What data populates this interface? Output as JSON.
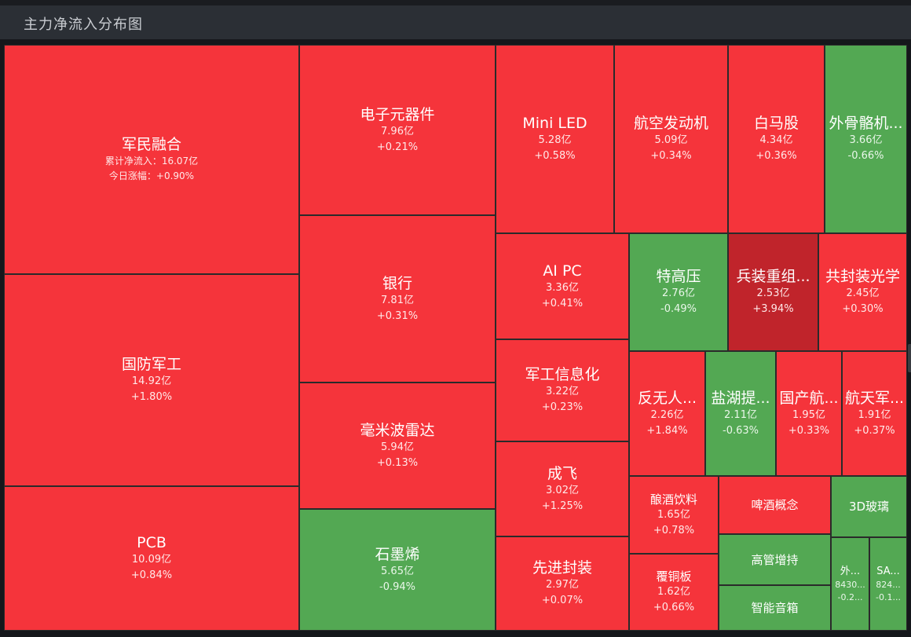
{
  "header": {
    "title": "主力净流入分布图"
  },
  "colors": {
    "red": "#f5343b",
    "dark_red": "#c0242b",
    "green": "#53a853"
  },
  "tiles": [
    {
      "name": "军民融合",
      "detail_line1": "累计净流入：16.07亿",
      "detail_line2": "今日涨幅：+0.90%",
      "color": "red"
    },
    {
      "name": "国防军工",
      "value": "14.92亿",
      "change": "+1.80%",
      "color": "red"
    },
    {
      "name": "PCB",
      "value": "10.09亿",
      "change": "+0.84%",
      "color": "red"
    },
    {
      "name": "电子元器件",
      "value": "7.96亿",
      "change": "+0.21%",
      "color": "red"
    },
    {
      "name": "银行",
      "value": "7.81亿",
      "change": "+0.31%",
      "color": "red"
    },
    {
      "name": "毫米波雷达",
      "value": "5.94亿",
      "change": "+0.13%",
      "color": "red"
    },
    {
      "name": "石墨烯",
      "value": "5.65亿",
      "change": "-0.94%",
      "color": "green"
    },
    {
      "name": "Mini LED",
      "value": "5.28亿",
      "change": "+0.58%",
      "color": "red"
    },
    {
      "name": "航空发动机",
      "value": "5.09亿",
      "change": "+0.34%",
      "color": "red"
    },
    {
      "name": "白马股",
      "value": "4.34亿",
      "change": "+0.36%",
      "color": "red"
    },
    {
      "name": "外骨骼机...",
      "value": "3.66亿",
      "change": "-0.66%",
      "color": "green"
    },
    {
      "name": "AI PC",
      "value": "3.36亿",
      "change": "+0.41%",
      "color": "red"
    },
    {
      "name": "特高压",
      "value": "2.76亿",
      "change": "-0.49%",
      "color": "green"
    },
    {
      "name": "兵装重组...",
      "value": "2.53亿",
      "change": "+3.94%",
      "color": "dark_red"
    },
    {
      "name": "共封装光学",
      "value": "2.45亿",
      "change": "+0.30%",
      "color": "red"
    },
    {
      "name": "军工信息化",
      "value": "3.22亿",
      "change": "+0.23%",
      "color": "red"
    },
    {
      "name": "反无人...",
      "value": "2.26亿",
      "change": "+1.84%",
      "color": "red"
    },
    {
      "name": "盐湖提...",
      "value": "2.11亿",
      "change": "-0.63%",
      "color": "green"
    },
    {
      "name": "国产航...",
      "value": "1.95亿",
      "change": "+0.33%",
      "color": "red"
    },
    {
      "name": "航天军...",
      "value": "1.91亿",
      "change": "+0.37%",
      "color": "red"
    },
    {
      "name": "成飞",
      "value": "3.02亿",
      "change": "+1.25%",
      "color": "red"
    },
    {
      "name": "先进封装",
      "value": "2.97亿",
      "change": "+0.07%",
      "color": "red"
    },
    {
      "name": "酿酒饮料",
      "value": "1.65亿",
      "change": "+0.78%",
      "color": "red"
    },
    {
      "name": "覆铜板",
      "value": "1.62亿",
      "change": "+0.66%",
      "color": "red"
    },
    {
      "name": "啤酒概念",
      "color": "red"
    },
    {
      "name": "高管增持",
      "color": "green"
    },
    {
      "name": "智能音箱",
      "color": "green"
    },
    {
      "name": "3D玻璃",
      "color": "green"
    },
    {
      "name": "外...",
      "value": "8430...",
      "change": "-0.2...",
      "color": "green"
    },
    {
      "name": "SA...",
      "value": "824...",
      "change": "-0.1...",
      "color": "green"
    }
  ]
}
